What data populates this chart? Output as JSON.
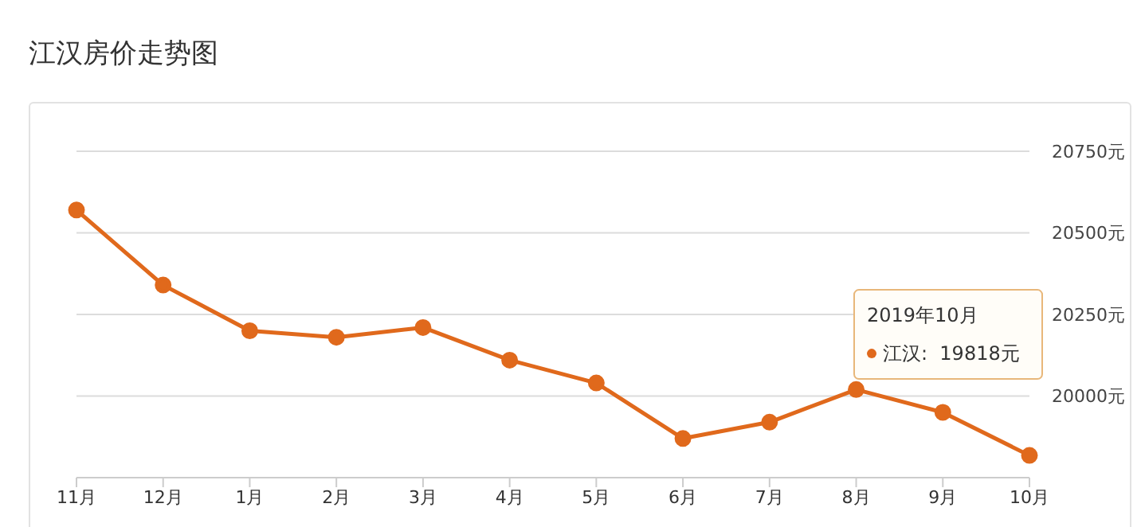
{
  "chart_data": {
    "type": "line",
    "title": "江汉房价走势图",
    "categories": [
      "11月",
      "12月",
      "1月",
      "2月",
      "3月",
      "4月",
      "5月",
      "6月",
      "7月",
      "8月",
      "9月",
      "10月"
    ],
    "series": [
      {
        "color": "#e0691c",
        "values": [
          20570,
          20340,
          20200,
          20180,
          20210,
          20110,
          20040,
          19870,
          19920,
          20020,
          19950,
          19818
        ]
      }
    ],
    "ylim": [
      19750,
      20750
    ],
    "yticks": [
      {
        "value": 20000,
        "label": "20000元"
      },
      {
        "value": 20250,
        "label": "20250元"
      },
      {
        "value": 20500,
        "label": "20500元"
      },
      {
        "value": 20750,
        "label": "20750元"
      }
    ],
    "grid": "y",
    "marker": "circle",
    "line_style": "solid",
    "legend": false,
    "annotations": [
      "2019年10月",
      "江汉:  19818元"
    ]
  }
}
